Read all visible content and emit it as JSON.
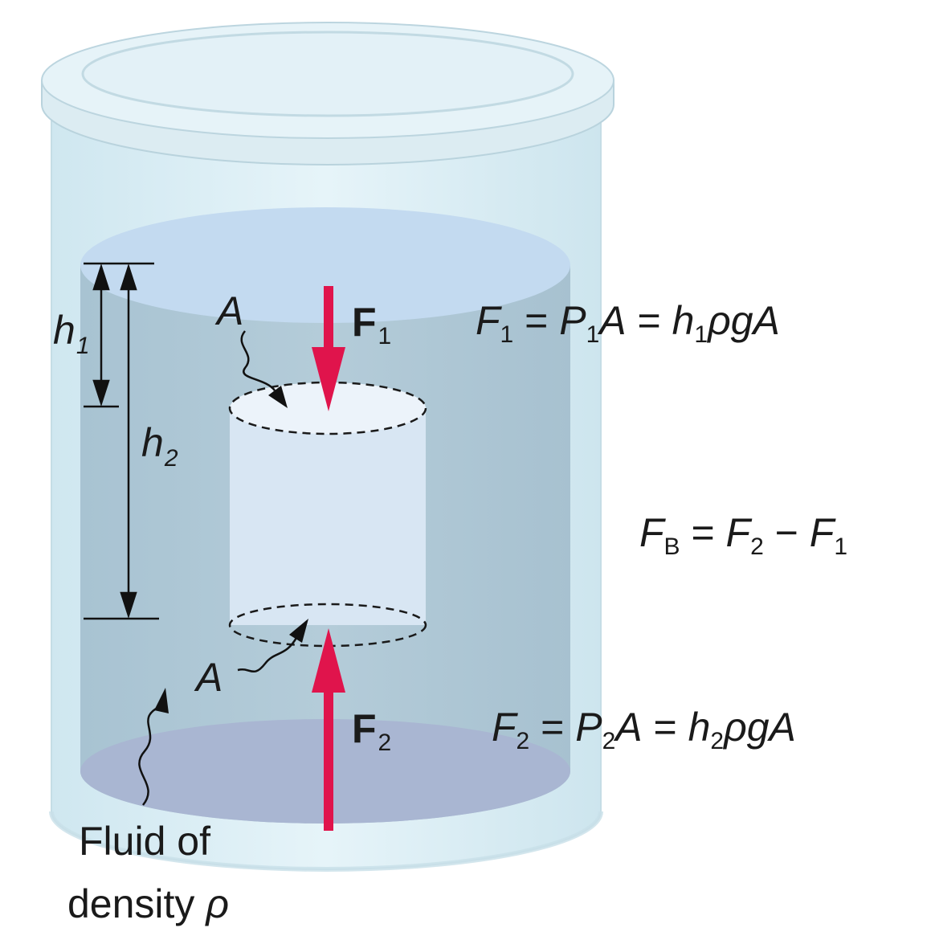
{
  "colors": {
    "arrow": "#e0144c",
    "fluid": "#aec7d6",
    "fluid_top": "#c3daf0",
    "container": "#d9edf5",
    "lid": "#e3f3f8",
    "bottom": "#a9b6d2",
    "column": "#d8e6f3"
  },
  "icons": {
    "force_arrow": "arrow-up-down-shape",
    "wavy_pointer": "wavy-arrow-shape"
  },
  "labels": {
    "h1": {
      "main": "h",
      "sub": "1"
    },
    "h2": {
      "main": "h",
      "sub": "2"
    },
    "area_top": "A",
    "area_bottom": "A",
    "force1": {
      "main": "F",
      "sub": "1"
    },
    "force2": {
      "main": "F",
      "sub": "2"
    },
    "fluid_line1": "Fluid of",
    "fluid_line2": "density ",
    "rho": "ρ"
  },
  "equations": {
    "eq1": {
      "F": "F",
      "F_sub": "1",
      "eqA": " = ",
      "P": "P",
      "P_sub": "1",
      "A1": "A",
      "eqB": " = ",
      "h": "h",
      "h_sub": "1",
      "rest": "ρgA"
    },
    "eqB": {
      "F": "F",
      "F_sub": "B",
      "eq": " = ",
      "F2": "F",
      "F2_sub": "2",
      "minus": " − ",
      "F1": "F",
      "F1_sub": "1"
    },
    "eq2": {
      "F": "F",
      "F_sub": "2",
      "eqA": " = ",
      "P": "P",
      "P_sub": "2",
      "A1": "A",
      "eqB": " = ",
      "h": "h",
      "h_sub": "2",
      "rest": "ρgA"
    }
  }
}
